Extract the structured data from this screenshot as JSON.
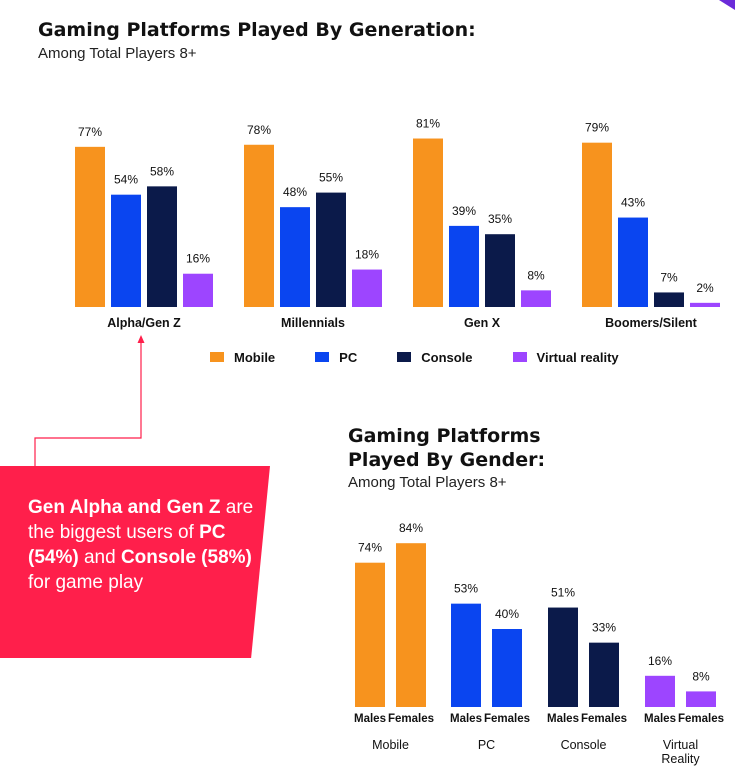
{
  "colors": {
    "mobile": "#f7931e",
    "pc": "#0a45f0",
    "console": "#0b1a4a",
    "vr": "#9d45ff",
    "callout_bg": "#ff1f4b",
    "accent_corner": "#6b2bd9"
  },
  "charts": {
    "generation": {
      "title": "Gaming Platforms Played By Generation:",
      "subtitle": "Among Total Players 8+"
    },
    "gender": {
      "title_line1": "Gaming Platforms",
      "title_line2": "Played By Gender:",
      "subtitle": "Among Total Players 8+"
    }
  },
  "legend": {
    "items": [
      {
        "label": "Mobile",
        "color_key": "mobile"
      },
      {
        "label": "PC",
        "color_key": "pc"
      },
      {
        "label": "Console",
        "color_key": "console"
      },
      {
        "label": "Virtual reality",
        "color_key": "vr"
      }
    ]
  },
  "callout": {
    "part1": "Gen Alpha and Gen Z",
    "part2": " are the biggest users of ",
    "part3": "PC (54%)",
    "part4": " and ",
    "part5": "Console (58%)",
    "part6": " for game play"
  },
  "chart_data": [
    {
      "type": "bar",
      "title": "Gaming Platforms Played By Generation:",
      "subtitle": "Among Total Players 8+",
      "categories": [
        "Alpha/Gen Z",
        "Millennials",
        "Gen X",
        "Boomers/Silent"
      ],
      "series": [
        {
          "name": "Mobile",
          "values": [
            77,
            78,
            81,
            79
          ]
        },
        {
          "name": "PC",
          "values": [
            54,
            48,
            39,
            43
          ]
        },
        {
          "name": "Console",
          "values": [
            58,
            55,
            35,
            7
          ]
        },
        {
          "name": "Virtual reality",
          "values": [
            16,
            18,
            8,
            2
          ]
        }
      ],
      "value_suffix": "%",
      "legend": "bottom",
      "grid": false
    },
    {
      "type": "bar",
      "title": "Gaming Platforms Played By Gender:",
      "subtitle": "Among Total Players 8+",
      "groups": [
        {
          "label": "Mobile",
          "color_key": "mobile",
          "bars": [
            {
              "label": "Males",
              "value": 74
            },
            {
              "label": "Females",
              "value": 84
            }
          ]
        },
        {
          "label": "PC",
          "color_key": "pc",
          "bars": [
            {
              "label": "Males",
              "value": 53
            },
            {
              "label": "Females",
              "value": 40
            }
          ]
        },
        {
          "label": "Console",
          "color_key": "console",
          "bars": [
            {
              "label": "Males",
              "value": 51
            },
            {
              "label": "Females",
              "value": 33
            }
          ]
        },
        {
          "label": "Virtual Reality",
          "label_lines": [
            "Virtual",
            "Reality"
          ],
          "color_key": "vr",
          "bars": [
            {
              "label": "Males",
              "value": 16
            },
            {
              "label": "Females",
              "value": 8
            }
          ]
        }
      ],
      "value_suffix": "%",
      "grid": false
    }
  ]
}
